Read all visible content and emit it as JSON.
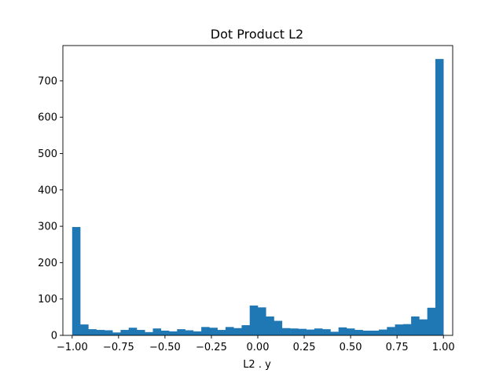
{
  "chart_data": {
    "type": "bar",
    "title": "Dot Product L2",
    "xlabel": "L2 . y",
    "ylabel": "",
    "bar_color": "#1f77b4",
    "xlim": [
      -1.05,
      1.05
    ],
    "ylim": [
      0,
      797
    ],
    "x_ticks": [
      -1.0,
      -0.75,
      -0.5,
      -0.25,
      0.0,
      0.25,
      0.5,
      0.75,
      1.0
    ],
    "x_tick_labels": [
      "−1.00",
      "−0.75",
      "−0.50",
      "−0.25",
      "0.00",
      "0.25",
      "0.50",
      "0.75",
      "1.00"
    ],
    "y_ticks": [
      0,
      100,
      200,
      300,
      400,
      500,
      600,
      700
    ],
    "y_tick_labels": [
      "0",
      "100",
      "200",
      "300",
      "400",
      "500",
      "600",
      "700"
    ],
    "bin_start": -1.0,
    "bin_end": 1.0,
    "values": [
      298,
      30,
      17,
      15,
      14,
      8,
      15,
      21,
      15,
      9,
      19,
      13,
      11,
      17,
      14,
      11,
      23,
      21,
      15,
      23,
      20,
      28,
      82,
      77,
      52,
      40,
      20,
      19,
      18,
      16,
      19,
      17,
      10,
      22,
      19,
      15,
      13,
      13,
      16,
      23,
      30,
      31,
      52,
      44,
      76,
      760
    ],
    "grid": false,
    "legend": "none"
  }
}
